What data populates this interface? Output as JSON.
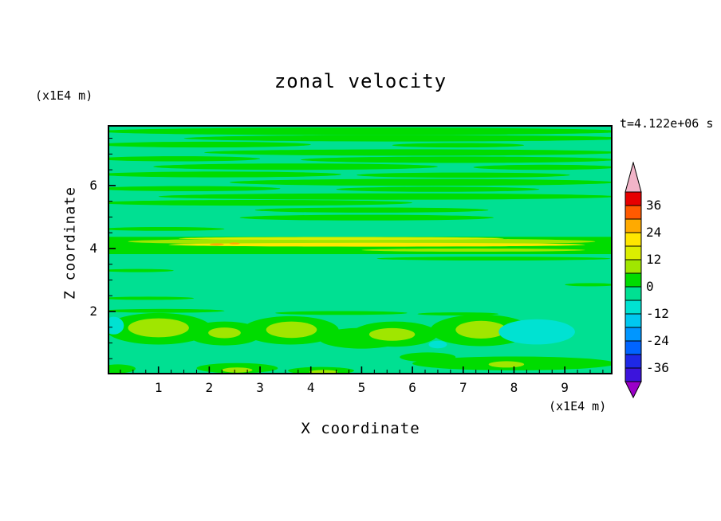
{
  "title": "zonal velocity",
  "time_label": "t=4.122e+06 s",
  "axes": {
    "x_title": "X coordinate",
    "y_title": "Z coordinate",
    "x_unit": "(x1E4 m)",
    "y_unit": "(x1E4 m)",
    "x_ticks": [
      1,
      2,
      3,
      4,
      5,
      6,
      7,
      8,
      9
    ],
    "y_ticks": [
      2,
      4,
      6
    ]
  },
  "colorbar": {
    "ticks": [
      36,
      24,
      12,
      0,
      -12,
      -24,
      -36
    ],
    "over_color": "#f2b4c8",
    "under_color": "#9b00c8"
  },
  "chart_data": {
    "type": "heatmap",
    "subtype": "filled-contour",
    "title": "zonal velocity",
    "xlabel": "X coordinate",
    "ylabel": "Z coordinate",
    "x_unit": "(x1E4 m)",
    "y_unit": "(x1E4 m)",
    "time": "t=4.122e+06 s",
    "x_range": [
      0,
      9.94
    ],
    "z_range": [
      0,
      7.92
    ],
    "x_ticks": [
      1,
      2,
      3,
      4,
      5,
      6,
      7,
      8,
      9
    ],
    "z_ticks": [
      2,
      4,
      6
    ],
    "contour_interval": 6,
    "levels": [
      -42,
      -36,
      -30,
      -24,
      -18,
      -12,
      -6,
      0,
      6,
      12,
      18,
      24,
      30,
      36,
      42
    ],
    "legend_position": "right",
    "background_value": -3,
    "palette": [
      {
        "min": -42,
        "max": -36,
        "color": "#3c14dc"
      },
      {
        "min": -36,
        "max": -30,
        "color": "#1e28e6"
      },
      {
        "min": -30,
        "max": -24,
        "color": "#0064ff"
      },
      {
        "min": -24,
        "max": -18,
        "color": "#0096ff"
      },
      {
        "min": -18,
        "max": -12,
        "color": "#00c8f0"
      },
      {
        "min": -12,
        "max": -6,
        "color": "#00e2d2"
      },
      {
        "min": -6,
        "max": 0,
        "color": "#00e092"
      },
      {
        "min": 0,
        "max": 6,
        "color": "#00dc00"
      },
      {
        "min": 6,
        "max": 12,
        "color": "#a0e600"
      },
      {
        "min": 12,
        "max": 18,
        "color": "#dcee00"
      },
      {
        "min": 18,
        "max": 24,
        "color": "#ffe600"
      },
      {
        "min": 24,
        "max": 30,
        "color": "#ffaa00"
      },
      {
        "min": 30,
        "max": 36,
        "color": "#ff5a00"
      },
      {
        "min": 36,
        "max": 42,
        "color": "#e60000"
      }
    ],
    "features": [
      {
        "shape": "ellipse",
        "x": 5.0,
        "z": 7.72,
        "rx": 5.2,
        "rz": 0.12,
        "value": 3
      },
      {
        "shape": "ellipse",
        "x": 5.9,
        "z": 7.5,
        "rx": 4.4,
        "rz": 0.1,
        "value": 3
      },
      {
        "shape": "ellipse",
        "x": 1.9,
        "z": 7.3,
        "rx": 2.1,
        "rz": 0.09,
        "value": 3
      },
      {
        "shape": "ellipse",
        "x": 6.9,
        "z": 7.28,
        "rx": 1.3,
        "rz": 0.07,
        "value": 3
      },
      {
        "shape": "ellipse",
        "x": 6.0,
        "z": 7.05,
        "rx": 4.1,
        "rz": 0.1,
        "value": 3
      },
      {
        "shape": "ellipse",
        "x": 1.4,
        "z": 6.85,
        "rx": 1.6,
        "rz": 0.08,
        "value": 3
      },
      {
        "shape": "ellipse",
        "x": 6.9,
        "z": 6.82,
        "rx": 3.1,
        "rz": 0.1,
        "value": 3
      },
      {
        "shape": "ellipse",
        "x": 3.7,
        "z": 6.6,
        "rx": 2.8,
        "rz": 0.1,
        "value": 3
      },
      {
        "shape": "ellipse",
        "x": 8.6,
        "z": 6.58,
        "rx": 1.4,
        "rz": 0.08,
        "value": 3
      },
      {
        "shape": "ellipse",
        "x": 2.2,
        "z": 6.35,
        "rx": 2.4,
        "rz": 0.09,
        "value": 3
      },
      {
        "shape": "ellipse",
        "x": 7.0,
        "z": 6.33,
        "rx": 2.1,
        "rz": 0.08,
        "value": 3
      },
      {
        "shape": "ellipse",
        "x": 6.2,
        "z": 6.1,
        "rx": 3.8,
        "rz": 0.11,
        "value": 3
      },
      {
        "shape": "ellipse",
        "x": 1.6,
        "z": 5.9,
        "rx": 1.8,
        "rz": 0.08,
        "value": 3
      },
      {
        "shape": "ellipse",
        "x": 6.5,
        "z": 5.88,
        "rx": 2.0,
        "rz": 0.08,
        "value": 3
      },
      {
        "shape": "ellipse",
        "x": 5.5,
        "z": 5.65,
        "rx": 4.5,
        "rz": 0.1,
        "value": 3
      },
      {
        "shape": "ellipse",
        "x": 2.9,
        "z": 5.45,
        "rx": 3.1,
        "rz": 0.09,
        "value": 3
      },
      {
        "shape": "ellipse",
        "x": 5.2,
        "z": 5.22,
        "rx": 2.3,
        "rz": 0.08,
        "value": 3
      },
      {
        "shape": "ellipse",
        "x": 5.1,
        "z": 4.98,
        "rx": 2.5,
        "rz": 0.09,
        "value": 3
      },
      {
        "shape": "ellipse",
        "x": 1.1,
        "z": 4.62,
        "rx": 1.2,
        "rz": 0.06,
        "value": 3
      },
      {
        "shape": "rect",
        "x": 0,
        "z": 3.82,
        "w": 9.94,
        "h": 0.55,
        "value": 3
      },
      {
        "shape": "ellipse",
        "x": 5.0,
        "z": 4.22,
        "rx": 4.6,
        "rz": 0.1,
        "value": 9
      },
      {
        "shape": "ellipse",
        "x": 4.6,
        "z": 4.32,
        "rx": 3.2,
        "rz": 0.045,
        "value": 15
      },
      {
        "shape": "ellipse",
        "x": 5.3,
        "z": 4.12,
        "rx": 4.1,
        "rz": 0.06,
        "value": 21
      },
      {
        "shape": "ellipse",
        "x": 2.15,
        "z": 4.13,
        "rx": 0.14,
        "rz": 0.035,
        "value": 27
      },
      {
        "shape": "ellipse",
        "x": 2.5,
        "z": 4.16,
        "rx": 0.1,
        "rz": 0.03,
        "value": 27
      },
      {
        "shape": "ellipse",
        "x": 7.2,
        "z": 3.95,
        "rx": 2.2,
        "rz": 0.05,
        "value": 9
      },
      {
        "shape": "ellipse",
        "x": 7.6,
        "z": 3.68,
        "rx": 2.3,
        "rz": 0.06,
        "value": 3
      },
      {
        "shape": "ellipse",
        "x": 0.6,
        "z": 3.3,
        "rx": 0.7,
        "rz": 0.05,
        "value": 3
      },
      {
        "shape": "ellipse",
        "x": 9.5,
        "z": 2.85,
        "rx": 0.5,
        "rz": 0.05,
        "value": 3
      },
      {
        "shape": "ellipse",
        "x": 0.8,
        "z": 2.42,
        "rx": 0.9,
        "rz": 0.05,
        "value": 3
      },
      {
        "shape": "ellipse",
        "x": 1.1,
        "z": 2.02,
        "rx": 1.2,
        "rz": 0.06,
        "value": 3
      },
      {
        "shape": "ellipse",
        "x": 4.6,
        "z": 1.95,
        "rx": 1.3,
        "rz": 0.06,
        "value": 3
      },
      {
        "shape": "ellipse",
        "x": 6.9,
        "z": 1.92,
        "rx": 0.8,
        "rz": 0.05,
        "value": 3
      },
      {
        "shape": "ellipse",
        "x": 1.0,
        "z": 1.45,
        "rx": 1.05,
        "rz": 0.5,
        "value": 3
      },
      {
        "shape": "ellipse",
        "x": 2.3,
        "z": 1.3,
        "rx": 0.75,
        "rz": 0.38,
        "value": 3
      },
      {
        "shape": "ellipse",
        "x": 3.6,
        "z": 1.4,
        "rx": 0.95,
        "rz": 0.45,
        "value": 3
      },
      {
        "shape": "ellipse",
        "x": 5.0,
        "z": 1.15,
        "rx": 0.85,
        "rz": 0.33,
        "value": 3
      },
      {
        "shape": "ellipse",
        "x": 5.65,
        "z": 1.28,
        "rx": 0.85,
        "rz": 0.4,
        "value": 3
      },
      {
        "shape": "ellipse",
        "x": 7.35,
        "z": 1.4,
        "rx": 1.0,
        "rz": 0.5,
        "value": 3
      },
      {
        "shape": "ellipse",
        "x": 8.0,
        "z": 0.35,
        "rx": 2.0,
        "rz": 0.22,
        "value": 3
      },
      {
        "shape": "ellipse",
        "x": 2.55,
        "z": 0.2,
        "rx": 0.8,
        "rz": 0.16,
        "value": 3
      },
      {
        "shape": "ellipse",
        "x": 4.2,
        "z": 0.12,
        "rx": 0.65,
        "rz": 0.12,
        "value": 3
      },
      {
        "shape": "ellipse",
        "x": 6.3,
        "z": 0.55,
        "rx": 0.55,
        "rz": 0.15,
        "value": 3
      },
      {
        "shape": "ellipse",
        "x": 0.2,
        "z": 0.18,
        "rx": 0.35,
        "rz": 0.14,
        "value": 3
      },
      {
        "shape": "ellipse",
        "x": 1.0,
        "z": 1.48,
        "rx": 0.6,
        "rz": 0.3,
        "value": 9
      },
      {
        "shape": "ellipse",
        "x": 2.3,
        "z": 1.32,
        "rx": 0.32,
        "rz": 0.17,
        "value": 9
      },
      {
        "shape": "ellipse",
        "x": 3.62,
        "z": 1.42,
        "rx": 0.5,
        "rz": 0.26,
        "value": 9
      },
      {
        "shape": "ellipse",
        "x": 5.6,
        "z": 1.27,
        "rx": 0.45,
        "rz": 0.2,
        "value": 9
      },
      {
        "shape": "ellipse",
        "x": 7.35,
        "z": 1.42,
        "rx": 0.5,
        "rz": 0.28,
        "value": 9
      },
      {
        "shape": "ellipse",
        "x": 2.55,
        "z": 0.14,
        "rx": 0.3,
        "rz": 0.08,
        "value": 9
      },
      {
        "shape": "ellipse",
        "x": 4.25,
        "z": 0.08,
        "rx": 0.28,
        "rz": 0.06,
        "value": 9
      },
      {
        "shape": "ellipse",
        "x": 7.85,
        "z": 0.32,
        "rx": 0.35,
        "rz": 0.1,
        "value": 9
      },
      {
        "shape": "ellipse",
        "x": 8.45,
        "z": 1.35,
        "rx": 0.75,
        "rz": 0.4,
        "value": -9
      },
      {
        "shape": "ellipse",
        "x": 0.12,
        "z": 1.55,
        "rx": 0.2,
        "rz": 0.28,
        "value": -9
      },
      {
        "shape": "ellipse",
        "x": 6.5,
        "z": 0.95,
        "rx": 0.18,
        "rz": 0.12,
        "value": -9
      }
    ]
  }
}
